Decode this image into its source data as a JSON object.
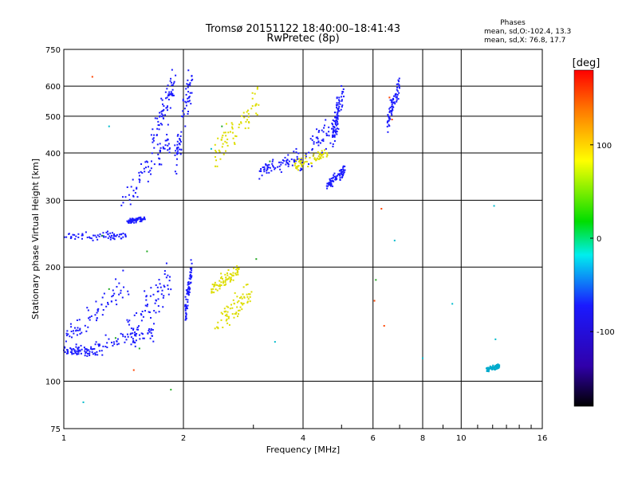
{
  "chart_data": {
    "type": "scatter",
    "title": "Tromsø 20151122 18:40:00–18:41:43",
    "subtitle": "RwPretec (8p)",
    "xlabel": "Frequency [MHz]",
    "ylabel": "Stationary phase Virtual Height [km]",
    "xscale": "log2",
    "yscale": "log",
    "xlim": [
      1,
      16
    ],
    "ylim": [
      75,
      750
    ],
    "x_ticks": [
      1,
      2,
      4,
      6,
      8,
      10,
      16
    ],
    "x_tick_labels": [
      "1",
      "2",
      "4",
      "6",
      "8",
      "10",
      "16"
    ],
    "y_ticks": [
      75,
      100,
      200,
      300,
      400,
      500,
      600,
      750
    ],
    "y_tick_labels": [
      "75",
      "100",
      "200",
      "300",
      "400",
      "500",
      "600",
      "750"
    ],
    "grid": true,
    "phase_box": {
      "heading": "Phases",
      "line1": "mean, sd,O:-102.4, 13.3",
      "line2": "mean, sd,X:  76.8, 17.7"
    },
    "colorbar": {
      "label": "[deg]",
      "range": [
        -180,
        180
      ],
      "ticks": [
        100,
        0,
        -100
      ],
      "tick_labels": [
        "100",
        "0",
        "-100"
      ]
    },
    "series": [
      {
        "phase": "O (blue, ~-100 deg)",
        "color": "#1a1aff",
        "clusters": [
          {
            "x": [
              1.0,
              1.2
            ],
            "y": [
              120,
              120
            ],
            "spread": [
              0.01,
              0.02
            ]
          },
          {
            "x": [
              1.2,
              1.7
            ],
            "y": [
              122,
              135
            ],
            "spread": [
              0.01,
              0.03
            ]
          },
          {
            "x": [
              1.0,
              1.45
            ],
            "y": [
              240,
              242
            ],
            "spread": [
              0.01,
              0.015
            ]
          },
          {
            "x": [
              1.45,
              1.6
            ],
            "y": [
              265,
              268
            ],
            "spread": [
              0.01,
              0.01
            ]
          },
          {
            "x": [
              1.4,
              1.85
            ],
            "y": [
              300,
              430
            ],
            "spread": [
              0.03,
              0.05
            ]
          },
          {
            "x": [
              1.65,
              1.9
            ],
            "y": [
              430,
              610
            ],
            "spread": [
              0.02,
              0.06
            ]
          },
          {
            "x": [
              1.9,
              2.1
            ],
            "y": [
              380,
              620
            ],
            "spread": [
              0.02,
              0.08
            ]
          },
          {
            "x": [
              1.0,
              1.45
            ],
            "y": [
              130,
              180
            ],
            "spread": [
              0.02,
              0.06
            ]
          },
          {
            "x": [
              1.45,
              1.85
            ],
            "y": [
              135,
              185
            ],
            "spread": [
              0.02,
              0.07
            ]
          },
          {
            "x": [
              2.02,
              2.1
            ],
            "y": [
              150,
              200
            ],
            "spread": [
              0.01,
              0.05
            ]
          },
          {
            "x": [
              3.1,
              3.9
            ],
            "y": [
              355,
              395
            ],
            "spread": [
              0.02,
              0.03
            ]
          },
          {
            "x": [
              3.9,
              4.9
            ],
            "y": [
              380,
              480
            ],
            "spread": [
              0.03,
              0.06
            ]
          },
          {
            "x": [
              4.6,
              5.1
            ],
            "y": [
              330,
              360
            ],
            "spread": [
              0.02,
              0.02
            ]
          },
          {
            "x": [
              4.75,
              5.05
            ],
            "y": [
              440,
              600
            ],
            "spread": [
              0.02,
              0.05
            ]
          },
          {
            "x": [
              6.5,
              7.0
            ],
            "y": [
              480,
              610
            ],
            "spread": [
              0.01,
              0.04
            ]
          }
        ]
      },
      {
        "phase": "X (yellow, ~+80 deg)",
        "color": "#dddd00",
        "clusters": [
          {
            "x": [
              2.4,
              2.95
            ],
            "y": [
              140,
              170
            ],
            "spread": [
              0.03,
              0.05
            ]
          },
          {
            "x": [
              2.35,
              2.75
            ],
            "y": [
              175,
              195
            ],
            "spread": [
              0.02,
              0.03
            ]
          },
          {
            "x": [
              2.4,
              3.1
            ],
            "y": [
              400,
              560
            ],
            "spread": [
              0.03,
              0.07
            ]
          },
          {
            "x": [
              3.8,
              4.6
            ],
            "y": [
              370,
              400
            ],
            "spread": [
              0.02,
              0.02
            ]
          }
        ]
      },
      {
        "phase": "scattered (mixed)",
        "color": "#22aa22",
        "points": [
          [
            1.35,
            130
          ],
          [
            1.55,
            122
          ],
          [
            1.25,
            242
          ],
          [
            1.62,
            220
          ],
          [
            1.86,
            95
          ],
          [
            6.1,
            185
          ],
          [
            3.05,
            210
          ],
          [
            1.3,
            175
          ],
          [
            2.5,
            470
          ],
          [
            3.3,
            380
          ]
        ]
      },
      {
        "phase": "isolated (red/orange)",
        "color": "#ff4400",
        "points": [
          [
            1.5,
            107
          ],
          [
            1.18,
            635
          ],
          [
            6.4,
            140
          ],
          [
            6.3,
            285
          ],
          [
            6.7,
            490
          ],
          [
            6.6,
            560
          ],
          [
            6.05,
            163
          ]
        ]
      },
      {
        "phase": "isolated (cyan)",
        "color": "#00bbcc",
        "points": [
          [
            1.3,
            470
          ],
          [
            1.12,
            88
          ],
          [
            6.8,
            235
          ],
          [
            8.0,
            115
          ],
          [
            9.5,
            160
          ],
          [
            12.1,
            290
          ],
          [
            12.2,
            129
          ],
          [
            3.4,
            127
          ],
          [
            2.35,
            410
          ]
        ]
      },
      {
        "phase": "cluster near 12 MHz (cyan)",
        "color": "#00aacc",
        "clusters": [
          {
            "x": [
              11.6,
              12.5
            ],
            "y": [
              107,
              110
            ],
            "spread": [
              0.01,
              0.01
            ]
          }
        ]
      }
    ]
  }
}
